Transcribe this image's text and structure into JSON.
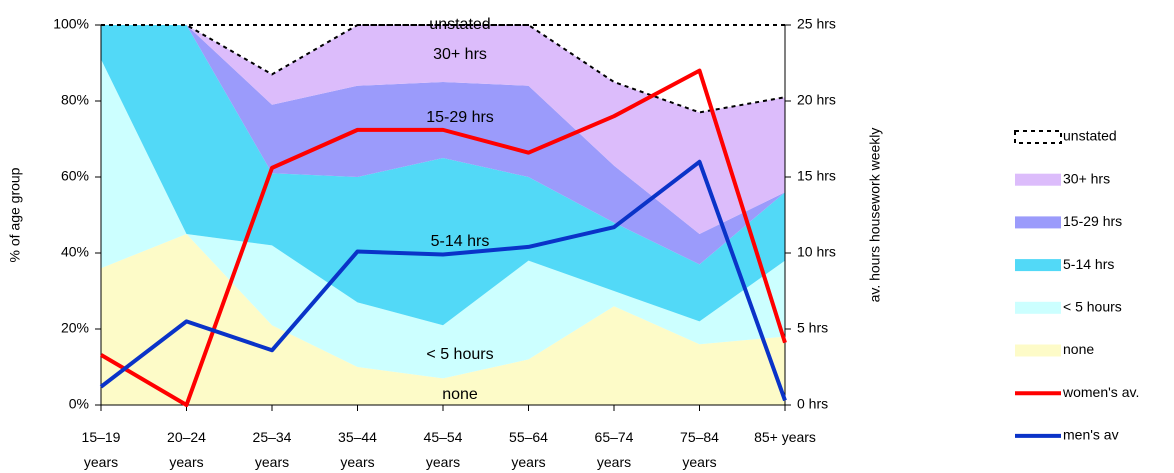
{
  "chart_data": {
    "type": "stacked-area-line",
    "categories": [
      "15–19\nyears",
      "20–24\nyears",
      "25–34\nyears",
      "35–44\nyears",
      "45–54\nyears",
      "55–64\nyears",
      "65–74\nyears",
      "75–84\nyears",
      "85+ years"
    ],
    "ylabel": "% of age group",
    "y2label": "av. hours housework weekly",
    "ylim": [
      0,
      100
    ],
    "yticks": [
      {
        "value": 0,
        "label": "0%"
      },
      {
        "value": 20,
        "label": "20%"
      },
      {
        "value": 40,
        "label": "40%"
      },
      {
        "value": 60,
        "label": "60%"
      },
      {
        "value": 80,
        "label": "80%"
      },
      {
        "value": 100,
        "label": "100%"
      }
    ],
    "y2lim": [
      0,
      25
    ],
    "y2ticks": [
      {
        "value": 0,
        "label": "0 hrs"
      },
      {
        "value": 5,
        "label": "5 hrs"
      },
      {
        "value": 10,
        "label": "10 hrs"
      },
      {
        "value": 15,
        "label": "15 hrs"
      },
      {
        "value": 20,
        "label": "20 hrs"
      },
      {
        "value": 25,
        "label": "25 hrs"
      }
    ],
    "legend": "right",
    "series": [
      {
        "name": "none",
        "color": "#fdfbc8",
        "values": [
          36,
          45,
          21,
          10,
          7,
          12,
          26,
          16,
          18
        ]
      },
      {
        "name": "< 5 hours",
        "color": "#ccffff",
        "values": [
          55,
          0,
          21,
          17,
          14,
          26,
          4,
          6,
          20
        ]
      },
      {
        "name": "5-14 hrs",
        "color": "#52d9f7",
        "values": [
          9,
          55,
          19,
          33,
          44,
          22,
          18,
          15,
          18
        ]
      },
      {
        "name": "15-29 hrs",
        "color": "#9b9bfb",
        "values": [
          0,
          0,
          18,
          24,
          20,
          24,
          15,
          8,
          0
        ]
      },
      {
        "name": "30+ hrs",
        "color": "#dcbcfb",
        "values": [
          0,
          0,
          8,
          16,
          15,
          16,
          22,
          32,
          25
        ]
      },
      {
        "name": "unstated",
        "color": "#ffffff",
        "dashed": true,
        "values": [
          0,
          0,
          13,
          0,
          0,
          0,
          15,
          23,
          19
        ]
      },
      {
        "name": "women's av.",
        "color": "#ff0000",
        "axis": "y2",
        "line": true,
        "values": [
          3.3,
          0,
          15.6,
          18.1,
          18.1,
          16.6,
          19,
          22,
          4.1
        ]
      },
      {
        "name": "men's av",
        "color": "#0a33c8",
        "axis": "y2",
        "line": true,
        "values": [
          1.2,
          5.5,
          3.6,
          10.1,
          9.9,
          10.4,
          11.7,
          16,
          0.3
        ]
      }
    ]
  }
}
